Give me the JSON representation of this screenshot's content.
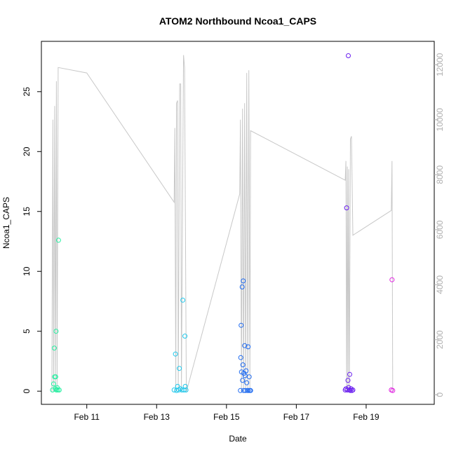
{
  "chart_data": {
    "type": "scatter",
    "title": "ATOM2 Northbound Ncoa1_CAPS",
    "xlabel": "Date",
    "ylabel": "Ncoa1_CAPS",
    "x_ticks": [
      "Feb 11",
      "Feb 13",
      "Feb 15",
      "Feb 17",
      "Feb 19"
    ],
    "x_tick_values": [
      11,
      13,
      15,
      17,
      19
    ],
    "xlim": [
      9.7,
      20.95
    ],
    "y_ticks": [
      "0",
      "5",
      "10",
      "15",
      "20",
      "25"
    ],
    "y_tick_values": [
      0,
      5,
      10,
      15,
      20,
      25
    ],
    "ylim": [
      -1.1,
      29.2
    ],
    "y2_ticks": [
      "0",
      "2000",
      "4000",
      "6000",
      "8000",
      "10000",
      "12000"
    ],
    "y2_tick_values": [
      0,
      2000,
      4000,
      6000,
      8000,
      10000,
      12000
    ],
    "y2lim": [
      -350,
      12850
    ],
    "secondary_line_color": "#c8c8c8",
    "points": [
      {
        "x": 10.02,
        "y": 0.1,
        "color": "#22f0a0"
      },
      {
        "x": 10.05,
        "y": 0.6,
        "color": "#22f0a0"
      },
      {
        "x": 10.07,
        "y": 3.6,
        "color": "#22f0a0"
      },
      {
        "x": 10.08,
        "y": 1.2,
        "color": "#22f0a0"
      },
      {
        "x": 10.1,
        "y": 0.2,
        "color": "#22f0a0"
      },
      {
        "x": 10.11,
        "y": 1.2,
        "color": "#22f0a0"
      },
      {
        "x": 10.12,
        "y": 5.0,
        "color": "#22f0a0"
      },
      {
        "x": 10.13,
        "y": 0.1,
        "color": "#22f0a0"
      },
      {
        "x": 10.15,
        "y": 0.3,
        "color": "#22f0a0"
      },
      {
        "x": 10.17,
        "y": 0.1,
        "color": "#22f0a0"
      },
      {
        "x": 10.19,
        "y": 12.6,
        "color": "#22f0a0"
      },
      {
        "x": 10.21,
        "y": 0.1,
        "color": "#22f0a0"
      },
      {
        "x": 13.5,
        "y": 0.1,
        "color": "#1ec8ec"
      },
      {
        "x": 13.54,
        "y": 3.1,
        "color": "#1ec8ec"
      },
      {
        "x": 13.57,
        "y": 0.05,
        "color": "#1ec8ec"
      },
      {
        "x": 13.6,
        "y": 0.4,
        "color": "#1ec8ec"
      },
      {
        "x": 13.63,
        "y": 0.1,
        "color": "#1ec8ec"
      },
      {
        "x": 13.65,
        "y": 1.9,
        "color": "#1ec8ec"
      },
      {
        "x": 13.68,
        "y": 0.2,
        "color": "#1ec8ec"
      },
      {
        "x": 13.72,
        "y": 0.1,
        "color": "#1ec8ec"
      },
      {
        "x": 13.75,
        "y": 7.6,
        "color": "#1ec8ec"
      },
      {
        "x": 13.78,
        "y": 0.1,
        "color": "#1ec8ec"
      },
      {
        "x": 13.81,
        "y": 4.6,
        "color": "#1ec8ec"
      },
      {
        "x": 13.82,
        "y": 0.4,
        "color": "#1ec8ec"
      },
      {
        "x": 13.84,
        "y": 0.1,
        "color": "#1ec8ec"
      },
      {
        "x": 15.4,
        "y": 0.05,
        "color": "#1e6af0"
      },
      {
        "x": 15.41,
        "y": 2.8,
        "color": "#1e6af0"
      },
      {
        "x": 15.42,
        "y": 5.5,
        "color": "#1e6af0"
      },
      {
        "x": 15.43,
        "y": 1.6,
        "color": "#1e6af0"
      },
      {
        "x": 15.45,
        "y": 8.7,
        "color": "#1e6af0"
      },
      {
        "x": 15.46,
        "y": 0.9,
        "color": "#1e6af0"
      },
      {
        "x": 15.47,
        "y": 2.2,
        "color": "#1e6af0"
      },
      {
        "x": 15.48,
        "y": 9.2,
        "color": "#1e6af0"
      },
      {
        "x": 15.49,
        "y": 0.05,
        "color": "#1e6af0"
      },
      {
        "x": 15.5,
        "y": 1.5,
        "color": "#1e6af0"
      },
      {
        "x": 15.52,
        "y": 3.8,
        "color": "#1e6af0"
      },
      {
        "x": 15.53,
        "y": 1.3,
        "color": "#1e6af0"
      },
      {
        "x": 15.54,
        "y": 0.05,
        "color": "#1e6af0"
      },
      {
        "x": 15.56,
        "y": 1.7,
        "color": "#1e6af0"
      },
      {
        "x": 15.58,
        "y": 0.7,
        "color": "#1e6af0"
      },
      {
        "x": 15.6,
        "y": 0.05,
        "color": "#1e6af0"
      },
      {
        "x": 15.62,
        "y": 3.7,
        "color": "#1e6af0"
      },
      {
        "x": 15.63,
        "y": 0.05,
        "color": "#1e6af0"
      },
      {
        "x": 15.65,
        "y": 1.2,
        "color": "#1e6af0"
      },
      {
        "x": 15.67,
        "y": 0.05,
        "color": "#1e6af0"
      },
      {
        "x": 15.69,
        "y": 0.05,
        "color": "#1e6af0"
      },
      {
        "x": 18.4,
        "y": 0.1,
        "color": "#6a1ef0"
      },
      {
        "x": 18.42,
        "y": 0.2,
        "color": "#6a1ef0"
      },
      {
        "x": 18.44,
        "y": 15.3,
        "color": "#6a1ef0"
      },
      {
        "x": 18.46,
        "y": 0.1,
        "color": "#6a1ef0"
      },
      {
        "x": 18.48,
        "y": 0.9,
        "color": "#6a1ef0"
      },
      {
        "x": 18.49,
        "y": 28.0,
        "color": "#6a1ef0"
      },
      {
        "x": 18.5,
        "y": 0.3,
        "color": "#6a1ef0"
      },
      {
        "x": 18.52,
        "y": 0.1,
        "color": "#6a1ef0"
      },
      {
        "x": 18.53,
        "y": 1.4,
        "color": "#6a1ef0"
      },
      {
        "x": 18.55,
        "y": 0.05,
        "color": "#6a1ef0"
      },
      {
        "x": 18.57,
        "y": 0.2,
        "color": "#6a1ef0"
      },
      {
        "x": 18.59,
        "y": 0.05,
        "color": "#6a1ef0"
      },
      {
        "x": 18.62,
        "y": 0.1,
        "color": "#6a1ef0"
      },
      {
        "x": 19.72,
        "y": 0.1,
        "color": "#e020e0"
      },
      {
        "x": 19.74,
        "y": 9.3,
        "color": "#e020e0"
      },
      {
        "x": 19.76,
        "y": 0.05,
        "color": "#e020e0"
      }
    ],
    "secondary_line": [
      [
        10.0,
        100
      ],
      [
        10.03,
        10000
      ],
      [
        10.05,
        100
      ],
      [
        10.08,
        10500
      ],
      [
        10.1,
        100
      ],
      [
        10.13,
        11400
      ],
      [
        10.15,
        100
      ],
      [
        10.18,
        11900
      ],
      [
        11.0,
        11700
      ],
      [
        13.5,
        7000
      ],
      [
        13.52,
        9700
      ],
      [
        13.55,
        100
      ],
      [
        13.57,
        10600
      ],
      [
        13.6,
        10700
      ],
      [
        13.62,
        100
      ],
      [
        13.66,
        11300
      ],
      [
        13.69,
        11300
      ],
      [
        13.71,
        100
      ],
      [
        13.77,
        12350
      ],
      [
        13.8,
        11900
      ],
      [
        13.85,
        100
      ],
      [
        15.38,
        7300
      ],
      [
        15.4,
        10000
      ],
      [
        15.43,
        100
      ],
      [
        15.46,
        10400
      ],
      [
        15.49,
        100
      ],
      [
        15.52,
        10600
      ],
      [
        15.55,
        100
      ],
      [
        15.58,
        11700
      ],
      [
        15.61,
        100
      ],
      [
        15.64,
        11800
      ],
      [
        15.67,
        200
      ],
      [
        15.69,
        9600
      ],
      [
        18.4,
        7800
      ],
      [
        18.42,
        8500
      ],
      [
        18.44,
        100
      ],
      [
        18.46,
        8300
      ],
      [
        18.48,
        100
      ],
      [
        18.5,
        8200
      ],
      [
        18.52,
        100
      ],
      [
        18.55,
        9300
      ],
      [
        18.58,
        9400
      ],
      [
        18.62,
        5800
      ],
      [
        19.72,
        6700
      ],
      [
        19.74,
        8500
      ],
      [
        19.76,
        100
      ]
    ]
  }
}
